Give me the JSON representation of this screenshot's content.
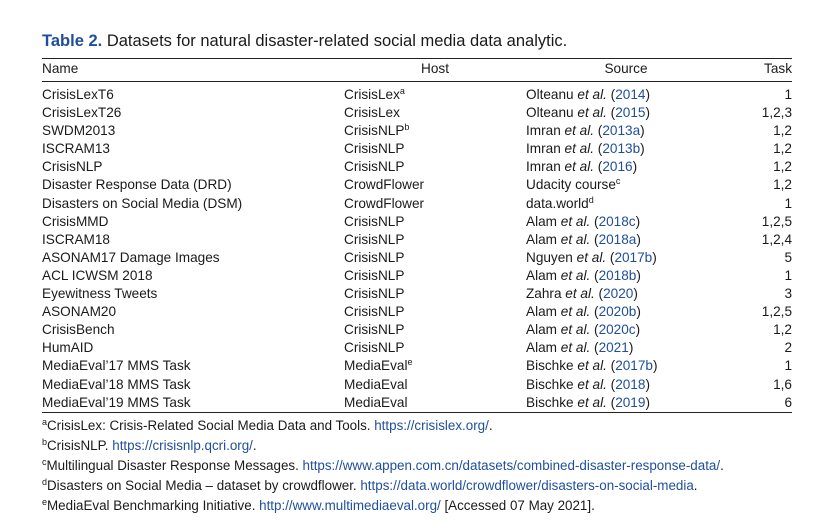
{
  "caption": {
    "label": "Table 2.",
    "title": "Datasets for natural disaster-related social media data analytic."
  },
  "headers": {
    "name": "Name",
    "host": "Host",
    "source": "Source",
    "task": "Task"
  },
  "rows": [
    {
      "name": "CrisisLexT6",
      "host": "CrisisLex",
      "host_sup": "a",
      "src_text": "Olteanu",
      "src_etal": "et al.",
      "src_year": "2014",
      "src_sup": "",
      "task": "1"
    },
    {
      "name": "CrisisLexT26",
      "host": "CrisisLex",
      "host_sup": "",
      "src_text": "Olteanu",
      "src_etal": "et al.",
      "src_year": "2015",
      "src_sup": "",
      "task": "1,2,3"
    },
    {
      "name": "SWDM2013",
      "host": "CrisisNLP",
      "host_sup": "b",
      "src_text": "Imran",
      "src_etal": "et al.",
      "src_year": "2013a",
      "src_sup": "",
      "task": "1,2"
    },
    {
      "name": "ISCRAM13",
      "host": "CrisisNLP",
      "host_sup": "",
      "src_text": "Imran",
      "src_etal": "et al.",
      "src_year": "2013b",
      "src_sup": "",
      "task": "1,2"
    },
    {
      "name": "CrisisNLP",
      "host": "CrisisNLP",
      "host_sup": "",
      "src_text": "Imran",
      "src_etal": "et al.",
      "src_year": "2016",
      "src_sup": "",
      "task": "1,2"
    },
    {
      "name": "Disaster Response Data (DRD)",
      "host": "CrowdFlower",
      "host_sup": "",
      "src_text": "Udacity course",
      "src_etal": "",
      "src_year": "",
      "src_sup": "c",
      "task": "1,2"
    },
    {
      "name": "Disasters on Social Media (DSM)",
      "host": "CrowdFlower",
      "host_sup": "",
      "src_text": "data.world",
      "src_etal": "",
      "src_year": "",
      "src_sup": "d",
      "task": "1"
    },
    {
      "name": "CrisisMMD",
      "host": "CrisisNLP",
      "host_sup": "",
      "src_text": "Alam",
      "src_etal": "et al.",
      "src_year": "2018c",
      "src_sup": "",
      "task": "1,2,5"
    },
    {
      "name": "ISCRAM18",
      "host": "CrisisNLP",
      "host_sup": "",
      "src_text": "Alam",
      "src_etal": "et al.",
      "src_year": "2018a",
      "src_sup": "",
      "task": "1,2,4"
    },
    {
      "name": "ASONAM17 Damage Images",
      "host": "CrisisNLP",
      "host_sup": "",
      "src_text": "Nguyen",
      "src_etal": "et al.",
      "src_year": "2017b",
      "src_sup": "",
      "task": "5"
    },
    {
      "name": "ACL ICWSM 2018",
      "host": "CrisisNLP",
      "host_sup": "",
      "src_text": "Alam",
      "src_etal": "et al.",
      "src_year": "2018b",
      "src_sup": "",
      "task": "1"
    },
    {
      "name": "Eyewitness Tweets",
      "host": "CrisisNLP",
      "host_sup": "",
      "src_text": "Zahra",
      "src_etal": "et al.",
      "src_year": "2020",
      "src_sup": "",
      "task": "3"
    },
    {
      "name": "ASONAM20",
      "host": "CrisisNLP",
      "host_sup": "",
      "src_text": "Alam",
      "src_etal": "et al.",
      "src_year": "2020b",
      "src_sup": "",
      "task": "1,2,5"
    },
    {
      "name": "CrisisBench",
      "host": "CrisisNLP",
      "host_sup": "",
      "src_text": "Alam",
      "src_etal": "et al.",
      "src_year": "2020c",
      "src_sup": "",
      "task": "1,2"
    },
    {
      "name": "HumAID",
      "host": "CrisisNLP",
      "host_sup": "",
      "src_text": "Alam",
      "src_etal": "et al.",
      "src_year": "2021",
      "src_sup": "",
      "task": "2"
    },
    {
      "name": "MediaEval’17 MMS Task",
      "host": "MediaEval",
      "host_sup": "e",
      "src_text": "Bischke",
      "src_etal": "et al.",
      "src_year": "2017b",
      "src_sup": "",
      "task": "1"
    },
    {
      "name": "MediaEval’18 MMS Task",
      "host": "MediaEval",
      "host_sup": "",
      "src_text": "Bischke",
      "src_etal": "et al.",
      "src_year": "2018",
      "src_sup": "",
      "task": "1,6"
    },
    {
      "name": "MediaEval’19 MMS Task",
      "host": "MediaEval",
      "host_sup": "",
      "src_text": "Bischke",
      "src_etal": "et al.",
      "src_year": "2019",
      "src_sup": "",
      "task": "6"
    }
  ],
  "footnotes": [
    {
      "mark": "a",
      "text": "CrisisLex: Crisis-Related Social Media Data and Tools. ",
      "link": "https://crisislex.org/",
      "after": "."
    },
    {
      "mark": "b",
      "text": "CrisisNLP. ",
      "link": "https://crisisnlp.qcri.org/",
      "after": "."
    },
    {
      "mark": "c",
      "text": "Multilingual Disaster Response Messages. ",
      "link": "https://www.appen.com.cn/datasets/combined-disaster-response-data/",
      "after": "."
    },
    {
      "mark": "d",
      "text": "Disasters on Social Media – dataset by crowdflower. ",
      "link": "https://data.world/crowdflower/disasters-on-social-media",
      "after": "."
    },
    {
      "mark": "e",
      "text": "MediaEval Benchmarking Initiative. ",
      "link": "http://www.multimediaeval.org/",
      "after": " [Accessed 07 May 2021]."
    }
  ]
}
